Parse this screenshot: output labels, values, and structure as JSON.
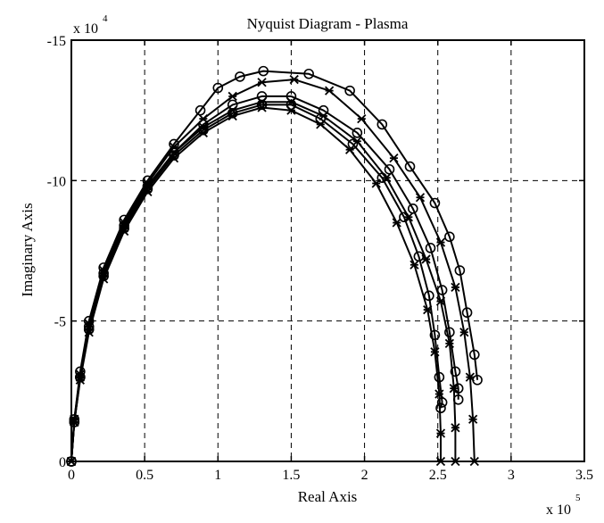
{
  "chart_data": {
    "type": "line",
    "title": "Nyquist Diagram - Plasma",
    "xlabel": "Real Axis",
    "ylabel": "Imaginary Axis",
    "x_multiplier": {
      "base": "x 10",
      "exponent": "5"
    },
    "y_multiplier": {
      "base": "x 10",
      "exponent": "4"
    },
    "xlim": [
      0,
      3.5
    ],
    "ylim": [
      0,
      -15
    ],
    "y_axis_reversed": true,
    "grid": true,
    "xticks": [
      0,
      0.5,
      1,
      1.5,
      2,
      2.5,
      3,
      3.5
    ],
    "xtick_labels": [
      "0",
      "0.5",
      "1",
      "1.5",
      "2",
      "2.5",
      "3",
      "3.5"
    ],
    "yticks": [
      0,
      -5,
      -10,
      -15
    ],
    "ytick_labels": [
      "0",
      "-5",
      "-10",
      "-15"
    ],
    "series": [
      {
        "marker": "o",
        "x": [
          0,
          0.02,
          0.06,
          0.12,
          0.22,
          0.36,
          0.52,
          0.7,
          0.88,
          1.0,
          1.15,
          1.31,
          1.62,
          1.9,
          2.12,
          2.31,
          2.48,
          2.58,
          2.65,
          2.7,
          2.75,
          2.77
        ],
        "y": [
          0,
          -1.5,
          -3.2,
          -5.0,
          -6.9,
          -8.6,
          -10.0,
          -11.3,
          -12.5,
          -13.3,
          -13.7,
          -13.9,
          -13.8,
          -13.2,
          -12.0,
          -10.5,
          -9.2,
          -8.0,
          -6.8,
          -5.3,
          -3.8,
          -2.9
        ]
      },
      {
        "marker": "o",
        "x": [
          0,
          0.02,
          0.06,
          0.12,
          0.22,
          0.36,
          0.52,
          0.7,
          0.9,
          1.1,
          1.3,
          1.5,
          1.72,
          1.95,
          2.17,
          2.33,
          2.45,
          2.53,
          2.58,
          2.62,
          2.64,
          2.64
        ],
        "y": [
          0,
          -1.4,
          -3.0,
          -4.8,
          -6.7,
          -8.4,
          -9.8,
          -11.0,
          -12.0,
          -12.7,
          -13.0,
          -13.0,
          -12.5,
          -11.7,
          -10.4,
          -9.0,
          -7.6,
          -6.1,
          -4.6,
          -3.2,
          -2.6,
          -2.2
        ]
      },
      {
        "marker": "o",
        "x": [
          0,
          0.02,
          0.06,
          0.12,
          0.22,
          0.36,
          0.52,
          0.7,
          0.9,
          1.1,
          1.3,
          1.5,
          1.7,
          1.92,
          2.12,
          2.27,
          2.37,
          2.44,
          2.48,
          2.51,
          2.53,
          2.52
        ],
        "y": [
          0,
          -1.4,
          -3.0,
          -4.7,
          -6.6,
          -8.3,
          -9.7,
          -10.9,
          -11.8,
          -12.4,
          -12.7,
          -12.7,
          -12.2,
          -11.3,
          -10.1,
          -8.7,
          -7.3,
          -5.9,
          -4.5,
          -3.0,
          -2.1,
          -1.9
        ]
      },
      {
        "marker": "x",
        "x": [
          0,
          0.02,
          0.06,
          0.12,
          0.22,
          0.36,
          0.52,
          0.7,
          0.9,
          1.1,
          1.3,
          1.52,
          1.76,
          1.98,
          2.2,
          2.38,
          2.52,
          2.62,
          2.68,
          2.72,
          2.74,
          2.75
        ],
        "y": [
          0,
          -1.5,
          -3.1,
          -4.9,
          -6.8,
          -8.5,
          -9.9,
          -11.2,
          -12.2,
          -13.0,
          -13.5,
          -13.6,
          -13.2,
          -12.2,
          -10.8,
          -9.4,
          -7.8,
          -6.2,
          -4.6,
          -3.0,
          -1.5,
          0
        ]
      },
      {
        "marker": "x",
        "x": [
          0,
          0.02,
          0.06,
          0.12,
          0.22,
          0.36,
          0.52,
          0.7,
          0.9,
          1.1,
          1.3,
          1.5,
          1.72,
          1.95,
          2.15,
          2.3,
          2.42,
          2.52,
          2.58,
          2.61,
          2.62,
          2.62
        ],
        "y": [
          0,
          -1.4,
          -3.0,
          -4.8,
          -6.7,
          -8.4,
          -9.8,
          -11.0,
          -11.9,
          -12.5,
          -12.8,
          -12.8,
          -12.3,
          -11.4,
          -10.1,
          -8.7,
          -7.2,
          -5.7,
          -4.2,
          -2.6,
          -1.2,
          0
        ]
      },
      {
        "marker": "x",
        "x": [
          0,
          0.02,
          0.06,
          0.12,
          0.22,
          0.36,
          0.52,
          0.7,
          0.9,
          1.1,
          1.3,
          1.5,
          1.7,
          1.9,
          2.08,
          2.22,
          2.34,
          2.43,
          2.48,
          2.51,
          2.52,
          2.52
        ],
        "y": [
          0,
          -1.4,
          -2.9,
          -4.6,
          -6.5,
          -8.2,
          -9.6,
          -10.8,
          -11.7,
          -12.3,
          -12.6,
          -12.5,
          -12.0,
          -11.1,
          -9.9,
          -8.5,
          -7.0,
          -5.4,
          -3.9,
          -2.4,
          -1.0,
          0
        ]
      }
    ]
  }
}
